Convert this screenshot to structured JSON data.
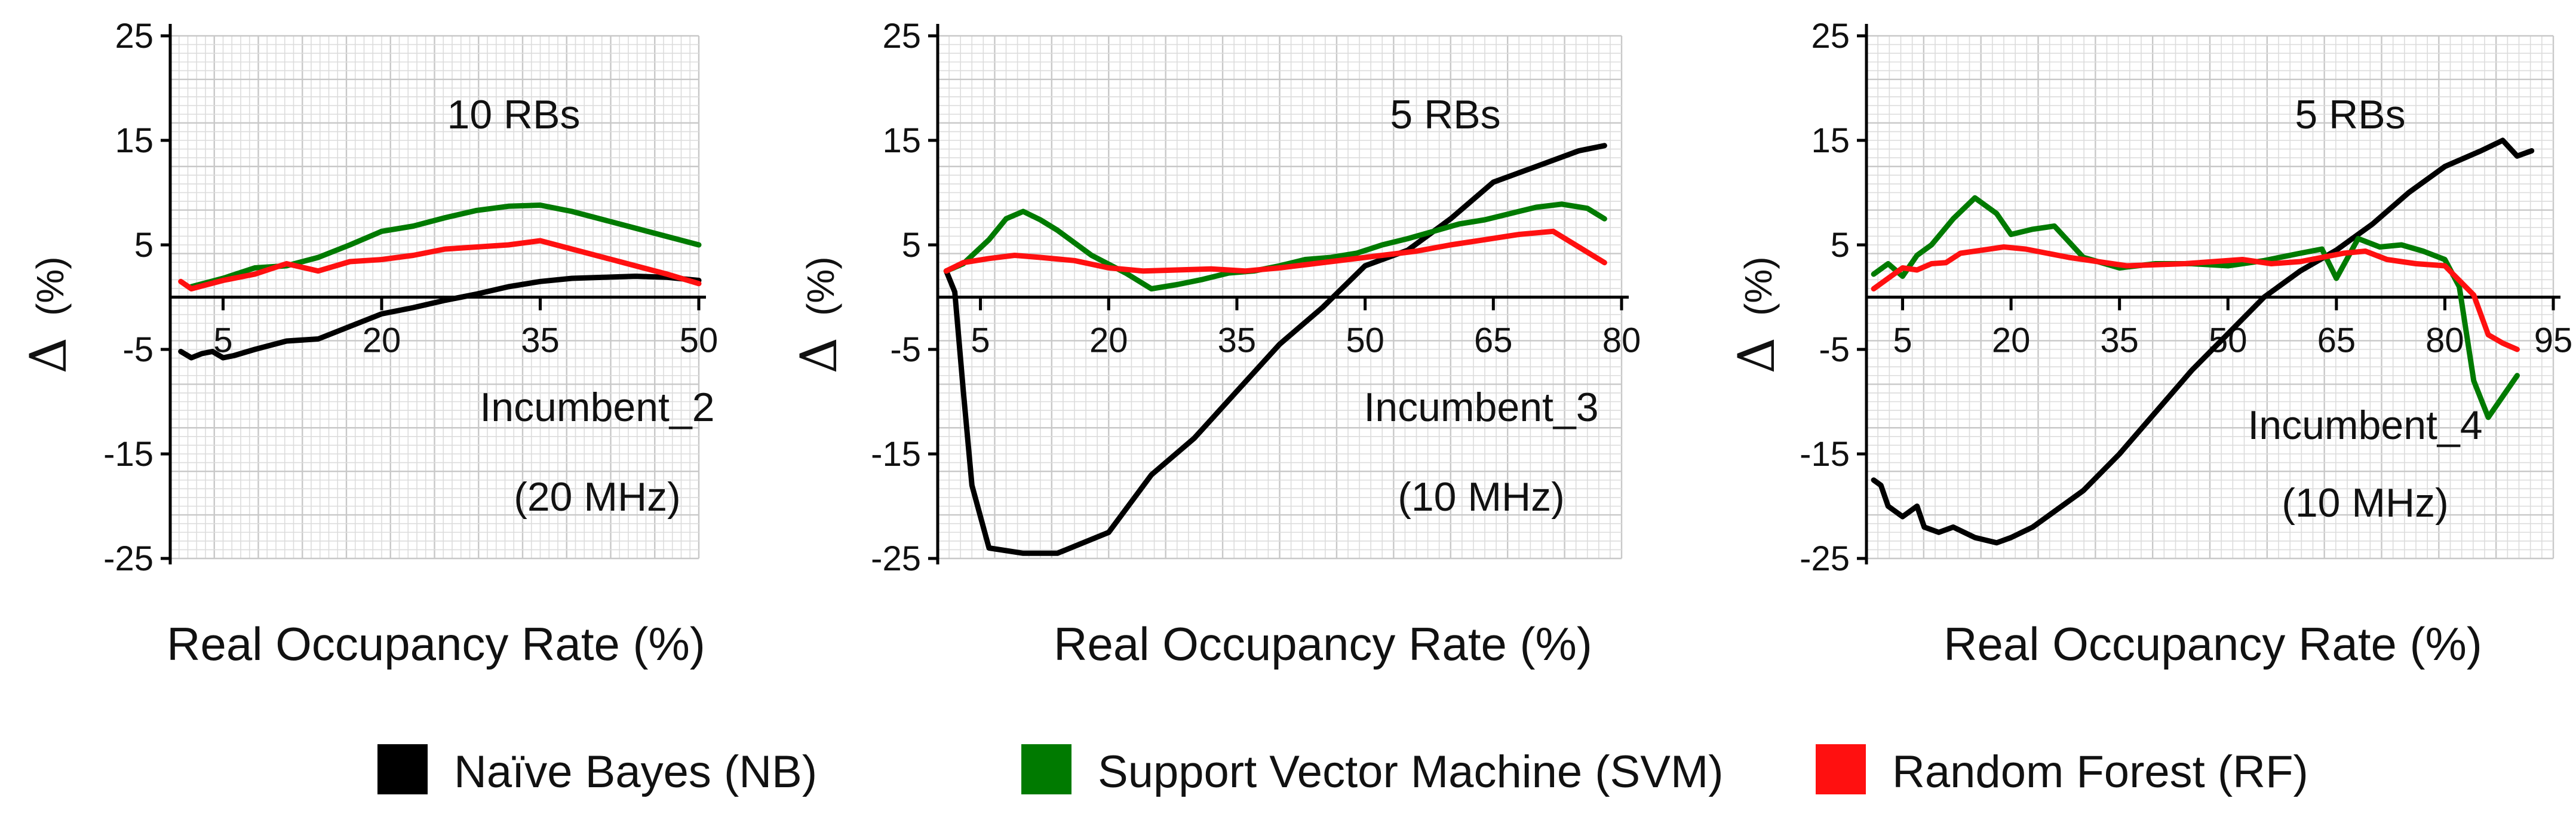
{
  "chart_data": [
    {
      "type": "line",
      "title": "",
      "xlabel": "Real Occupancy Rate (%)",
      "ylabel_symbol": "Δ",
      "ylabel_unit": "(%)",
      "annotations": [
        "10 RBs",
        "Incumbent_2",
        "(20 MHz)"
      ],
      "xlim": [
        0,
        50
      ],
      "ylim": [
        -25,
        25
      ],
      "xticks": [
        5,
        20,
        35,
        50
      ],
      "yticks": [
        25,
        15,
        5,
        -5,
        -15,
        -25
      ],
      "ytick_labels": [
        "25",
        "15",
        "5",
        "-5",
        "-15",
        "-25"
      ],
      "grid": true,
      "series": [
        {
          "name": "Naïve Bayes (NB)",
          "x": [
            1,
            2,
            3,
            4,
            5,
            6,
            8,
            11,
            14,
            17,
            20,
            23,
            26,
            29,
            32,
            35,
            38,
            41,
            44,
            47,
            50
          ],
          "y": [
            -5.2,
            -5.8,
            -5.4,
            -5.2,
            -5.8,
            -5.6,
            -5.0,
            -4.2,
            -4.0,
            -2.8,
            -1.6,
            -1.0,
            -0.3,
            0.3,
            1.0,
            1.5,
            1.8,
            1.9,
            2.0,
            1.9,
            1.6
          ]
        },
        {
          "name": "Support Vector Machine (SVM)",
          "x": [
            2,
            5,
            8,
            11,
            14,
            17,
            20,
            23,
            26,
            29,
            32,
            35,
            38,
            41,
            44,
            47,
            50
          ],
          "y": [
            1.0,
            1.8,
            2.8,
            3.0,
            3.8,
            5.0,
            6.3,
            6.8,
            7.6,
            8.3,
            8.7,
            8.8,
            8.2,
            7.4,
            6.6,
            5.8,
            5.0
          ]
        },
        {
          "name": "Random Forest (RF)",
          "x": [
            1,
            2,
            5,
            8,
            11,
            14,
            17,
            20,
            23,
            26,
            29,
            32,
            35,
            38,
            41,
            44,
            47,
            50
          ],
          "y": [
            1.5,
            0.8,
            1.6,
            2.2,
            3.2,
            2.5,
            3.4,
            3.6,
            4.0,
            4.6,
            4.8,
            5.0,
            5.4,
            4.6,
            3.8,
            3.0,
            2.2,
            1.3
          ]
        }
      ]
    },
    {
      "type": "line",
      "title": "",
      "xlabel": "Real Occupancy Rate (%)",
      "ylabel_symbol": "Δ",
      "ylabel_unit": "(%)",
      "annotations": [
        "5 RBs",
        "Incumbent_3",
        "(10 MHz)"
      ],
      "xlim": [
        0,
        80
      ],
      "ylim": [
        -25,
        25
      ],
      "xticks": [
        5,
        20,
        35,
        50,
        65,
        80
      ],
      "yticks": [
        25,
        15,
        5,
        -5,
        -15,
        -25
      ],
      "ytick_labels": [
        "25",
        "15",
        "5",
        "-5",
        "-15",
        "-25"
      ],
      "grid": true,
      "series": [
        {
          "name": "Naïve Bayes (NB)",
          "x": [
            1,
            2,
            3,
            4,
            6,
            10,
            14,
            20,
            25,
            30,
            35,
            40,
            45,
            50,
            55,
            60,
            65,
            70,
            75,
            78
          ],
          "y": [
            2.5,
            0.5,
            -9,
            -18,
            -24,
            -24.5,
            -24.5,
            -22.5,
            -17,
            -13.5,
            -9,
            -4.5,
            -1,
            3,
            4.5,
            7.5,
            11,
            12.5,
            14,
            14.5
          ]
        },
        {
          "name": "Support Vector Machine (SVM)",
          "x": [
            1,
            3,
            6,
            8,
            10,
            12,
            14,
            18,
            22,
            25,
            28,
            31,
            34,
            37,
            40,
            43,
            46,
            49,
            52,
            55,
            58,
            61,
            64,
            67,
            70,
            73,
            76,
            78
          ],
          "y": [
            2.5,
            3.2,
            5.5,
            7.5,
            8.2,
            7.4,
            6.4,
            4.0,
            2.3,
            0.8,
            1.2,
            1.7,
            2.3,
            2.5,
            3.0,
            3.6,
            3.8,
            4.2,
            5.0,
            5.6,
            6.3,
            7.0,
            7.4,
            8.0,
            8.6,
            8.9,
            8.5,
            7.5
          ]
        },
        {
          "name": "Random Forest (RF)",
          "x": [
            1,
            3,
            6,
            9,
            12,
            16,
            20,
            24,
            28,
            32,
            36,
            40,
            44,
            48,
            52,
            56,
            60,
            64,
            68,
            72,
            75,
            78
          ],
          "y": [
            2.5,
            3.3,
            3.7,
            4.0,
            3.8,
            3.5,
            2.8,
            2.5,
            2.6,
            2.7,
            2.5,
            2.8,
            3.2,
            3.6,
            4.0,
            4.4,
            5.0,
            5.5,
            6.0,
            6.3,
            4.8,
            3.3
          ]
        }
      ]
    },
    {
      "type": "line",
      "title": "",
      "xlabel": "Real Occupancy Rate (%)",
      "ylabel_symbol": "Δ",
      "ylabel_unit": "(%)",
      "annotations": [
        "5 RBs",
        "Incumbent_4",
        "(10 MHz)"
      ],
      "xlim": [
        0,
        95
      ],
      "ylim": [
        -25,
        25
      ],
      "xticks": [
        5,
        20,
        35,
        50,
        65,
        80,
        95
      ],
      "yticks": [
        25,
        15,
        5,
        -5,
        -15,
        -25
      ],
      "ytick_labels": [
        "25",
        "15",
        "5",
        "-5",
        "-15",
        "-25"
      ],
      "grid": true,
      "series": [
        {
          "name": "Naïve Bayes (NB)",
          "x": [
            1,
            2,
            3,
            5,
            7,
            8,
            10,
            12,
            15,
            18,
            20,
            23,
            26,
            30,
            35,
            40,
            45,
            50,
            55,
            60,
            65,
            70,
            75,
            80,
            85,
            88,
            90,
            92
          ],
          "y": [
            -17.5,
            -18,
            -20,
            -21,
            -20,
            -22,
            -22.5,
            -22,
            -23,
            -23.5,
            -23,
            -22,
            -20.5,
            -18.5,
            -15,
            -11,
            -7,
            -3.5,
            0,
            2.5,
            4.5,
            7,
            10,
            12.5,
            14,
            15,
            13.5,
            14
          ]
        },
        {
          "name": "Support Vector Machine (SVM)",
          "x": [
            1,
            3,
            5,
            7,
            9,
            12,
            15,
            18,
            20,
            23,
            26,
            30,
            35,
            40,
            45,
            50,
            55,
            60,
            63,
            65,
            68,
            71,
            74,
            77,
            80,
            82,
            84,
            86,
            88,
            90
          ],
          "y": [
            2.2,
            3.2,
            2.0,
            4.0,
            5.0,
            7.5,
            9.5,
            8.0,
            6.0,
            6.5,
            6.8,
            3.8,
            2.8,
            3.2,
            3.2,
            3.0,
            3.5,
            4.2,
            4.6,
            1.8,
            5.6,
            4.8,
            5.0,
            4.4,
            3.6,
            1.0,
            -8.0,
            -11.5,
            -9.5,
            -7.5
          ]
        },
        {
          "name": "Random Forest (RF)",
          "x": [
            1,
            3,
            5,
            7,
            9,
            11,
            13,
            16,
            19,
            22,
            25,
            28,
            32,
            36,
            40,
            44,
            48,
            52,
            56,
            60,
            63,
            66,
            69,
            72,
            76,
            80,
            84,
            86,
            88,
            90
          ],
          "y": [
            0.8,
            1.8,
            2.8,
            2.6,
            3.2,
            3.3,
            4.2,
            4.5,
            4.8,
            4.6,
            4.2,
            3.8,
            3.4,
            3.0,
            3.1,
            3.2,
            3.4,
            3.6,
            3.2,
            3.4,
            3.8,
            4.2,
            4.4,
            3.6,
            3.2,
            3.0,
            0.2,
            -3.6,
            -4.4,
            -5.0
          ]
        }
      ]
    }
  ],
  "legend": [
    {
      "label": "Naïve Bayes (NB)",
      "color": "#000000"
    },
    {
      "label": "Support Vector Machine (SVM)",
      "color": "#007a00"
    },
    {
      "label": "Random Forest (RF)",
      "color": "#ff1010"
    }
  ],
  "colors": {
    "grid_minor": "#dcdcdc",
    "grid_major": "#c8c8c8",
    "axis": "#000000"
  }
}
